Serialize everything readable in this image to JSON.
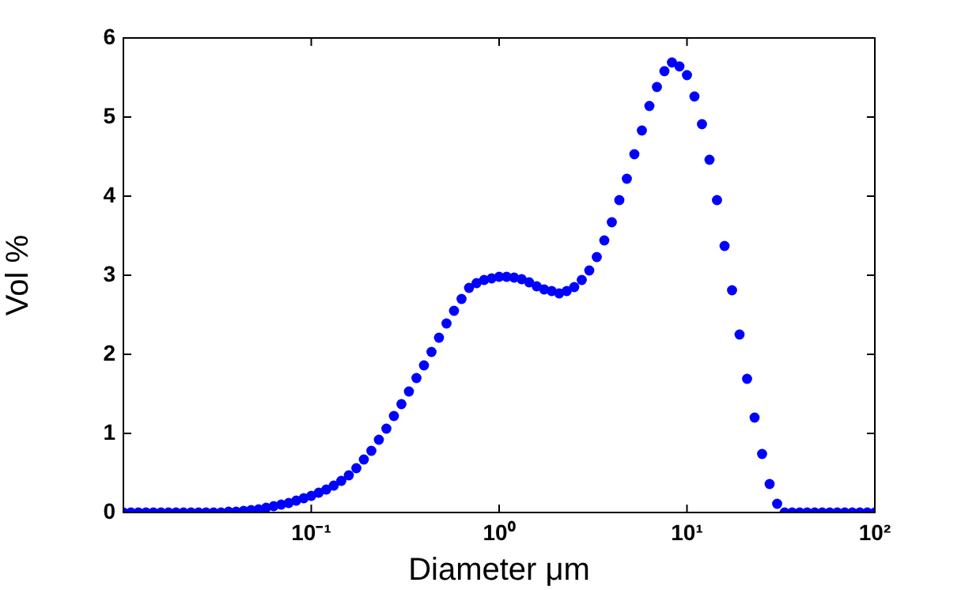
{
  "chart_data": {
    "type": "scatter",
    "xlabel": "Diameter μm",
    "ylabel": "Vol %",
    "log": "x",
    "xlim": [
      0.01,
      100
    ],
    "ylim": [
      0,
      6
    ],
    "xticks": [
      {
        "value": 0.01,
        "label": null
      },
      {
        "value": 0.1,
        "label": "10⁻¹"
      },
      {
        "value": 1,
        "label": "10⁰"
      },
      {
        "value": 10,
        "label": "10¹"
      },
      {
        "value": 100,
        "label": "10²"
      }
    ],
    "yticks": [
      0,
      1,
      2,
      3,
      4,
      5,
      6
    ],
    "grid": false,
    "legend": false,
    "marker": "circle",
    "series": [
      {
        "color": "#0000ff",
        "x": [
          0.01,
          0.01096,
          0.01202,
          0.01318,
          0.01445,
          0.01585,
          0.01738,
          0.01905,
          0.02089,
          0.02291,
          0.02512,
          0.02754,
          0.0302,
          0.03311,
          0.03631,
          0.03981,
          0.04365,
          0.04786,
          0.05248,
          0.05754,
          0.0631,
          0.06918,
          0.07586,
          0.08318,
          0.0912,
          0.1,
          0.1096,
          0.1202,
          0.1318,
          0.1445,
          0.1585,
          0.1738,
          0.1905,
          0.2089,
          0.2291,
          0.2512,
          0.2754,
          0.302,
          0.3311,
          0.3631,
          0.3981,
          0.4365,
          0.4786,
          0.5248,
          0.5754,
          0.631,
          0.6918,
          0.7586,
          0.8318,
          0.912,
          1,
          1.096,
          1.202,
          1.318,
          1.445,
          1.585,
          1.738,
          1.905,
          2.089,
          2.291,
          2.512,
          2.754,
          3.02,
          3.311,
          3.631,
          3.981,
          4.365,
          4.786,
          5.248,
          5.754,
          6.31,
          6.918,
          7.586,
          8.318,
          9.12,
          10,
          10.96,
          12.02,
          13.18,
          14.45,
          15.85,
          17.38,
          19.05,
          20.89,
          22.91,
          25.12,
          27.54,
          30.2,
          33.11,
          36.31,
          39.81,
          43.65,
          47.86,
          52.48,
          57.54,
          63.1,
          69.18,
          75.86,
          83.18,
          91.2,
          100
        ],
        "values": [
          0,
          0,
          0,
          0,
          0,
          0,
          0,
          0,
          0,
          0,
          0,
          0,
          0,
          0,
          0.01,
          0.01,
          0.02,
          0.03,
          0.04,
          0.06,
          0.08,
          0.1,
          0.12,
          0.15,
          0.18,
          0.21,
          0.25,
          0.29,
          0.34,
          0.4,
          0.47,
          0.56,
          0.67,
          0.78,
          0.92,
          1.06,
          1.22,
          1.37,
          1.53,
          1.7,
          1.86,
          2.03,
          2.21,
          2.39,
          2.55,
          2.7,
          2.84,
          2.9,
          2.94,
          2.96,
          2.98,
          2.98,
          2.97,
          2.95,
          2.91,
          2.86,
          2.82,
          2.8,
          2.77,
          2.8,
          2.85,
          2.94,
          3.06,
          3.23,
          3.44,
          3.67,
          3.95,
          4.22,
          4.53,
          4.83,
          5.14,
          5.38,
          5.58,
          5.69,
          5.64,
          5.53,
          5.26,
          4.91,
          4.46,
          3.95,
          3.37,
          2.81,
          2.25,
          1.69,
          1.2,
          0.74,
          0.36,
          0.11,
          0,
          0,
          0,
          0,
          0,
          0,
          0,
          0,
          0,
          0,
          0,
          0,
          0
        ]
      }
    ]
  }
}
